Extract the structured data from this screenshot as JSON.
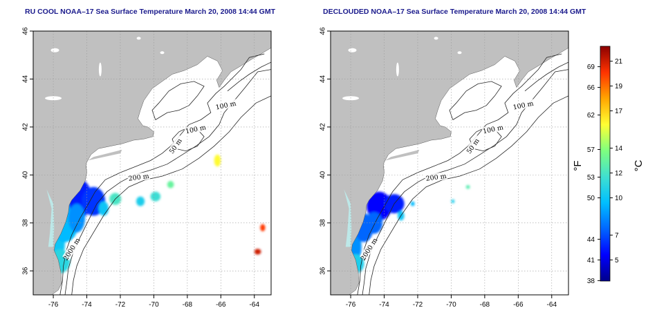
{
  "titles": {
    "left": "RU COOL NOAA–17 Sea Surface Temperature March 20, 2008 14:44 GMT",
    "right": "DECLOUDED NOAA–17 Sea Surface Temperature March 20, 2008 14:44 GMT"
  },
  "map": {
    "lon_range": [
      -77.2,
      -63.0
    ],
    "lat_range": [
      35.0,
      46.0
    ],
    "lon_ticks": [
      {
        "value": -76,
        "label": "-76"
      },
      {
        "value": -74,
        "label": "-74"
      },
      {
        "value": -72,
        "label": "-72"
      },
      {
        "value": -70,
        "label": "-70"
      },
      {
        "value": -68,
        "label": "-68"
      },
      {
        "value": -66,
        "label": "-66"
      },
      {
        "value": -64,
        "label": "-64"
      }
    ],
    "lat_ticks": [
      {
        "value": 36,
        "label": "36"
      },
      {
        "value": 38,
        "label": "38"
      },
      {
        "value": 40,
        "label": "40"
      },
      {
        "value": 42,
        "label": "42"
      },
      {
        "value": 44,
        "label": "44"
      },
      {
        "value": 46,
        "label": "46"
      }
    ],
    "grid": "dotted",
    "land_color": "#c0c0c0",
    "ocean_color": "#ffffff"
  },
  "contour_labels": [
    {
      "text": "100 m",
      "lon": -65.7,
      "lat": 42.9,
      "rotate": -12
    },
    {
      "text": "100 m",
      "lon": -67.5,
      "lat": 41.9,
      "rotate": -12
    },
    {
      "text": "50 m",
      "lon": -68.7,
      "lat": 41.2,
      "rotate": -55
    },
    {
      "text": "200 m",
      "lon": -70.9,
      "lat": 39.9,
      "rotate": -8
    },
    {
      "text": "2000 m",
      "lon": -74.9,
      "lat": 36.9,
      "rotate": -58
    }
  ],
  "colorbar": {
    "fahrenheit_label": "°F",
    "celsius_label": "°C",
    "range_c": [
      3.3,
      22.2
    ],
    "fahrenheit_ticks": [
      "38",
      "41",
      "44",
      "50",
      "53",
      "57",
      "62",
      "66",
      "69"
    ],
    "fahrenheit_values": [
      38,
      41,
      44,
      50,
      53,
      57,
      62,
      66,
      69
    ],
    "celsius_ticks": [
      "5",
      "7",
      "10",
      "12",
      "14",
      "17",
      "19",
      "21"
    ],
    "celsius_values": [
      5,
      7,
      10,
      12,
      14,
      17,
      19,
      21
    ],
    "colors": [
      "#00008b",
      "#0000ff",
      "#0066ff",
      "#00bfff",
      "#40e0d0",
      "#7fff7f",
      "#ffff33",
      "#ffa500",
      "#ff3300",
      "#8b0000"
    ]
  },
  "sst_left": [
    {
      "lon": -76.6,
      "lat": 38.0,
      "rx": 0.35,
      "ry": 0.9,
      "temp_c": 10.5
    },
    {
      "lon": -76.0,
      "lat": 37.2,
      "rx": 0.7,
      "ry": 1.0,
      "temp_c": 10.0
    },
    {
      "lon": -75.3,
      "lat": 38.0,
      "rx": 0.8,
      "ry": 0.8,
      "temp_c": 9.5
    },
    {
      "lon": -74.4,
      "lat": 39.0,
      "rx": 0.7,
      "ry": 0.8,
      "temp_c": 6.0
    },
    {
      "lon": -73.6,
      "lat": 38.9,
      "rx": 0.7,
      "ry": 0.6,
      "temp_c": 6.5
    },
    {
      "lon": -74.6,
      "lat": 38.2,
      "rx": 0.5,
      "ry": 0.6,
      "temp_c": 8.5
    },
    {
      "lon": -75.6,
      "lat": 36.4,
      "rx": 0.6,
      "ry": 0.5,
      "temp_c": 11.0
    },
    {
      "lon": -76.3,
      "lat": 35.7,
      "rx": 0.5,
      "ry": 0.4,
      "temp_c": 13.5
    },
    {
      "lon": -76.7,
      "lat": 35.3,
      "rx": 0.5,
      "ry": 0.3,
      "temp_c": 14.5
    },
    {
      "lon": -73.0,
      "lat": 38.6,
      "rx": 0.3,
      "ry": 0.3,
      "temp_c": 10.0
    },
    {
      "lon": -72.3,
      "lat": 39.0,
      "rx": 0.35,
      "ry": 0.25,
      "temp_c": 12.0
    },
    {
      "lon": -70.8,
      "lat": 38.9,
      "rx": 0.25,
      "ry": 0.2,
      "temp_c": 10.5
    },
    {
      "lon": -69.9,
      "lat": 39.1,
      "rx": 0.3,
      "ry": 0.2,
      "temp_c": 11.5
    },
    {
      "lon": -69.0,
      "lat": 39.6,
      "rx": 0.2,
      "ry": 0.15,
      "temp_c": 13.0
    },
    {
      "lon": -66.2,
      "lat": 40.6,
      "rx": 0.2,
      "ry": 0.25,
      "temp_c": 16.0
    },
    {
      "lon": -63.5,
      "lat": 37.8,
      "rx": 0.15,
      "ry": 0.15,
      "temp_c": 20.0
    },
    {
      "lon": -63.8,
      "lat": 36.8,
      "rx": 0.2,
      "ry": 0.12,
      "temp_c": 21.0
    },
    {
      "lon": -74.3,
      "lat": 40.8,
      "rx": 0.08,
      "ry": 0.08,
      "temp_c": 6.0
    }
  ],
  "sst_right": [
    {
      "lon": -76.6,
      "lat": 37.7,
      "rx": 0.3,
      "ry": 0.6,
      "temp_c": 10.0
    },
    {
      "lon": -75.9,
      "lat": 37.0,
      "rx": 0.55,
      "ry": 0.7,
      "temp_c": 8.5
    },
    {
      "lon": -75.2,
      "lat": 37.8,
      "rx": 0.55,
      "ry": 0.6,
      "temp_c": 7.5
    },
    {
      "lon": -74.3,
      "lat": 38.7,
      "rx": 0.75,
      "ry": 0.6,
      "temp_c": 5.5
    },
    {
      "lon": -73.4,
      "lat": 38.8,
      "rx": 0.6,
      "ry": 0.4,
      "temp_c": 6.0
    },
    {
      "lon": -74.6,
      "lat": 38.0,
      "rx": 0.5,
      "ry": 0.45,
      "temp_c": 7.5
    },
    {
      "lon": -75.7,
      "lat": 36.3,
      "rx": 0.5,
      "ry": 0.4,
      "temp_c": 10.5
    },
    {
      "lon": -76.4,
      "lat": 35.6,
      "rx": 0.4,
      "ry": 0.3,
      "temp_c": 13.5
    },
    {
      "lon": -76.7,
      "lat": 35.2,
      "rx": 0.5,
      "ry": 0.25,
      "temp_c": 14.5
    },
    {
      "lon": -73.0,
      "lat": 38.3,
      "rx": 0.2,
      "ry": 0.2,
      "temp_c": 10.0
    },
    {
      "lon": -72.3,
      "lat": 38.8,
      "rx": 0.12,
      "ry": 0.1,
      "temp_c": 9.5
    },
    {
      "lon": -69.9,
      "lat": 38.9,
      "rx": 0.1,
      "ry": 0.08,
      "temp_c": 10.5
    },
    {
      "lon": -69.0,
      "lat": 39.5,
      "rx": 0.12,
      "ry": 0.08,
      "temp_c": 12.5
    },
    {
      "lon": -74.3,
      "lat": 40.8,
      "rx": 0.08,
      "ry": 0.08,
      "temp_c": 6.0
    }
  ]
}
